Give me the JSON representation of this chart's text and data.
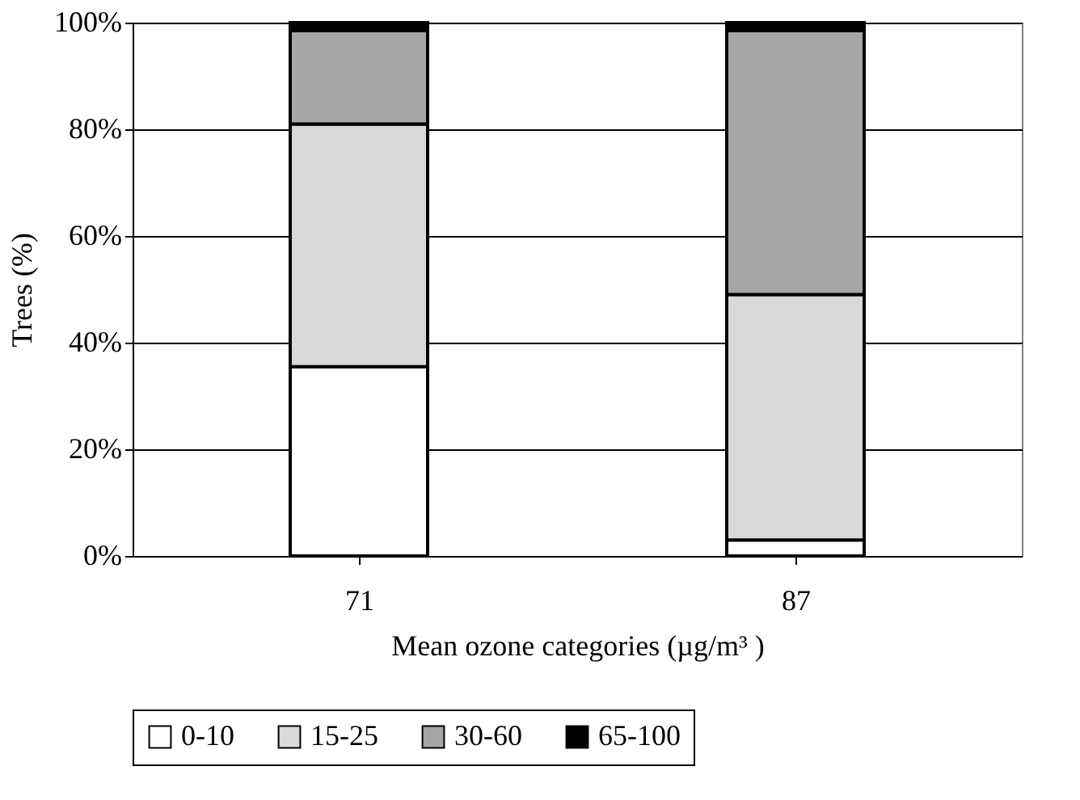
{
  "chart_data": {
    "type": "bar",
    "stacked": true,
    "xlabel": "Mean ozone categories (µg/m³ )",
    "ylabel": "Trees (%)",
    "categories": [
      "71",
      "87"
    ],
    "series": [
      {
        "name": "0-10",
        "color": "#ffffff",
        "values": [
          35.5,
          3
        ]
      },
      {
        "name": "15-25",
        "color": "#d9d9d9",
        "values": [
          45.5,
          46
        ]
      },
      {
        "name": "30-60",
        "color": "#a6a6a6",
        "values": [
          17.5,
          49.5
        ]
      },
      {
        "name": "65-100",
        "color": "#000000",
        "values": [
          1.5,
          1.5
        ]
      }
    ],
    "ylim": [
      0,
      100
    ],
    "yticks": [
      {
        "value": 0,
        "label": "0%"
      },
      {
        "value": 20,
        "label": "20%"
      },
      {
        "value": 40,
        "label": "40%"
      },
      {
        "value": 60,
        "label": "60%"
      },
      {
        "value": 80,
        "label": "80%"
      },
      {
        "value": 100,
        "label": "100%"
      }
    ],
    "grid": "y",
    "legend": "bottom"
  }
}
